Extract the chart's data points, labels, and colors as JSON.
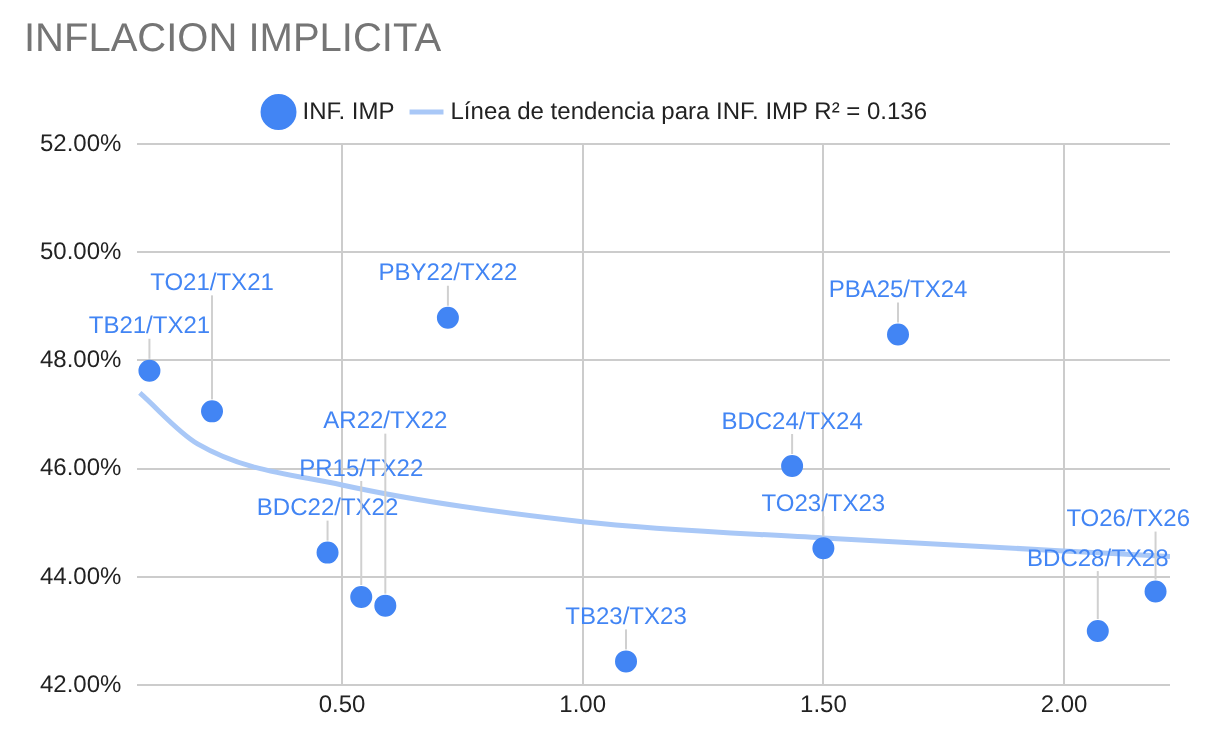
{
  "chart_data": {
    "type": "scatter",
    "title": "INFLACION IMPLICITA",
    "x": [
      0.1,
      0.23,
      0.72,
      0.47,
      0.54,
      0.59,
      1.09,
      1.435,
      1.5,
      1.655,
      2.07,
      2.19
    ],
    "series": [
      {
        "name": "INF. IMP",
        "color": "#4285f4",
        "values": [
          47.81,
          47.06,
          48.79,
          44.45,
          43.63,
          43.47,
          42.44,
          46.05,
          44.53,
          48.48,
          43.0,
          43.73
        ]
      },
      {
        "name": "Línea de tendencia para INF. IMP R² = 0.136",
        "type": "line",
        "marker": "none",
        "color": "#a9c8f7",
        "x": [
          0.08,
          0.2,
          0.5,
          1.0,
          1.5,
          2.22
        ],
        "values": [
          47.4,
          46.46,
          45.7,
          45.02,
          44.72,
          44.38
        ]
      }
    ],
    "annotations": [
      {
        "text": "TB21/TX21",
        "x": 0.1,
        "y": 47.81
      },
      {
        "text": "TO21/TX21",
        "x": 0.23,
        "y": 47.06
      },
      {
        "text": "PBY22/TX22",
        "x": 0.72,
        "y": 48.79
      },
      {
        "text": "BDC22/TX22",
        "x": 0.47,
        "y": 44.45
      },
      {
        "text": "PR15/TX22",
        "x": 0.54,
        "y": 43.63
      },
      {
        "text": "AR22/TX22",
        "x": 0.59,
        "y": 43.47
      },
      {
        "text": "TB23/TX23",
        "x": 1.09,
        "y": 42.44
      },
      {
        "text": "BDC24/TX24",
        "x": 1.435,
        "y": 46.05
      },
      {
        "text": "TO23/TX23",
        "x": 1.5,
        "y": 44.53
      },
      {
        "text": "PBA25/TX24",
        "x": 1.655,
        "y": 48.48
      },
      {
        "text": "BDC28/TX28",
        "x": 2.07,
        "y": 43.0
      },
      {
        "text": "TO26/TX26",
        "x": 2.19,
        "y": 43.73
      }
    ],
    "xlim": [
      0.075,
      2.22
    ],
    "xticks": [
      {
        "value": 0.5,
        "label": "0.50"
      },
      {
        "value": 1,
        "label": "1.00"
      },
      {
        "value": 1.5,
        "label": "1.50"
      },
      {
        "value": 2,
        "label": "2.00"
      }
    ],
    "ylim": [
      42,
      52
    ],
    "yticks": [
      {
        "value": 42,
        "label": "42.00%"
      },
      {
        "value": 44,
        "label": "44.00%"
      },
      {
        "value": 46,
        "label": "46.00%"
      },
      {
        "value": 48,
        "label": "48.00%"
      },
      {
        "value": 50,
        "label": "50.00%"
      },
      {
        "value": 52,
        "label": "52.00%"
      }
    ],
    "grid": true,
    "legend": "top",
    "marker": "circle",
    "line_style": "solid"
  }
}
